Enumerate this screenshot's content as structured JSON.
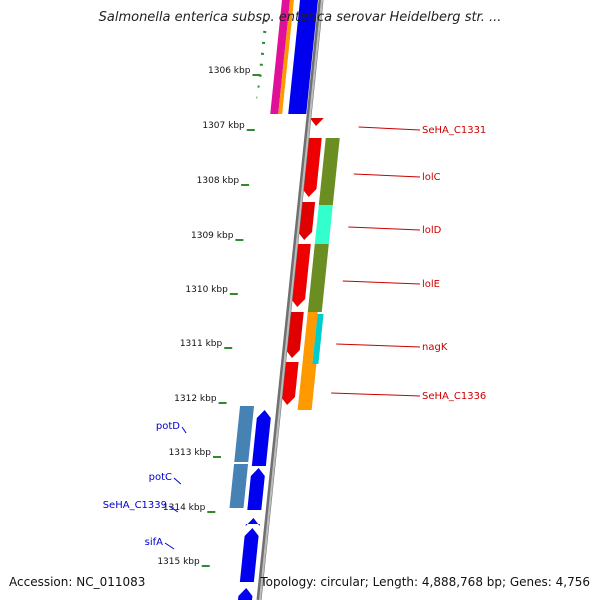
{
  "title": "Salmonella enterica subsp. enterica serovar Heidelberg str. ...",
  "accession": "Accession: NC_011083",
  "summary": "Topology: circular; Length: 4,888,768 bp; Genes: 4,756",
  "colors": {
    "strand_line": "#8a8a8a",
    "dotted_ring": "#2e8b2e",
    "forward_label": "#cc0000",
    "reverse_label": "#0000cc"
  },
  "ticks": [
    "1306 kbp",
    "1307 kbp",
    "1308 kbp",
    "1309 kbp",
    "1310 kbp",
    "1311 kbp",
    "1312 kbp",
    "1313 kbp",
    "1314 kbp",
    "1315 kbp"
  ],
  "forward_genes": [
    {
      "label": "SeHA_C1331",
      "color": "#cc0000"
    },
    {
      "label": "lolC",
      "color": "#cc0000"
    },
    {
      "label": "lolD",
      "color": "#cc0000"
    },
    {
      "label": "lolE",
      "color": "#cc0000"
    },
    {
      "label": "nagK",
      "color": "#cc0000"
    },
    {
      "label": "SeHA_C1336",
      "color": "#cc0000"
    }
  ],
  "reverse_genes": [
    {
      "label": "potD",
      "color": "#0000cc"
    },
    {
      "label": "potC",
      "color": "#0000cc"
    },
    {
      "label": "SeHA_C1339",
      "color": "#0000cc"
    },
    {
      "label": "sifA",
      "color": "#0000cc"
    }
  ]
}
